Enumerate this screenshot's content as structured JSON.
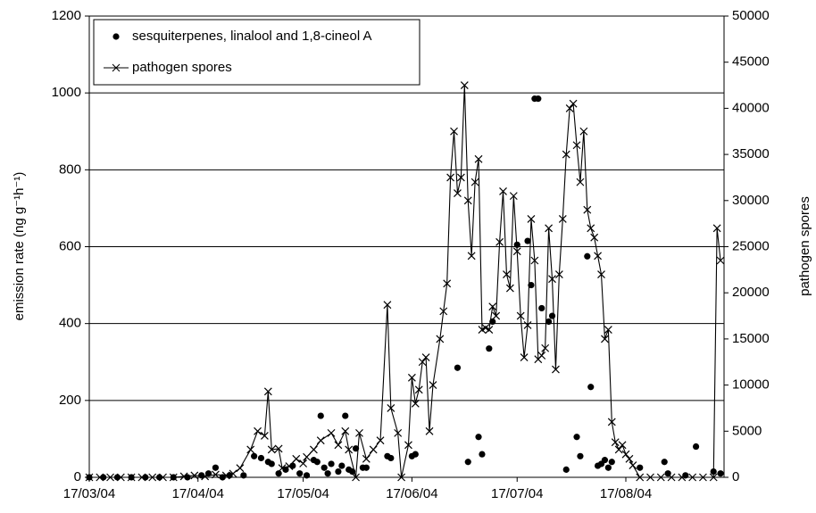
{
  "chart_data": {
    "type": "combo",
    "ylabel": "emission rate (ng g⁻¹h⁻¹)",
    "y2label": "pathogen spores",
    "xlim": [
      "2004-03-17",
      "2004-09-14"
    ],
    "xticks": [
      {
        "value": "2004-03-17",
        "label": "17/03/04"
      },
      {
        "value": "2004-04-17",
        "label": "17/04/04"
      },
      {
        "value": "2004-05-17",
        "label": "17/05/04"
      },
      {
        "value": "2004-06-17",
        "label": "17/06/04"
      },
      {
        "value": "2004-07-17",
        "label": "17/07/04"
      },
      {
        "value": "2004-08-17",
        "label": "17/08/04"
      }
    ],
    "ylim": [
      0,
      1200
    ],
    "yticks": [
      0,
      200,
      400,
      600,
      800,
      1000,
      1200
    ],
    "y2lim": [
      0,
      50000
    ],
    "y2ticks": [
      0,
      5000,
      10000,
      15000,
      20000,
      25000,
      30000,
      35000,
      40000,
      45000,
      50000
    ],
    "grid": true,
    "legend": "upper left",
    "series": [
      {
        "name": "sesquiterpenes, linalool and 1,8-cineol A",
        "type": "scatter",
        "color": "#000000",
        "x": [
          "2004-03-17",
          "2004-03-21",
          "2004-03-25",
          "2004-03-29",
          "2004-04-02",
          "2004-04-06",
          "2004-04-10",
          "2004-04-14",
          "2004-04-18",
          "2004-04-20",
          "2004-04-22",
          "2004-04-24",
          "2004-04-26",
          "2004-04-30",
          "2004-05-03",
          "2004-05-05",
          "2004-05-07",
          "2004-05-08",
          "2004-05-10",
          "2004-05-12",
          "2004-05-14",
          "2004-05-16",
          "2004-05-18",
          "2004-05-20",
          "2004-05-21",
          "2004-05-22",
          "2004-05-23",
          "2004-05-24",
          "2004-05-25",
          "2004-05-27",
          "2004-05-28",
          "2004-05-29",
          "2004-05-30",
          "2004-05-31",
          "2004-06-01",
          "2004-06-03",
          "2004-06-04",
          "2004-06-10",
          "2004-06-11",
          "2004-06-17",
          "2004-06-18",
          "2004-06-30",
          "2004-07-03",
          "2004-07-06",
          "2004-07-07",
          "2004-07-09",
          "2004-07-10",
          "2004-07-17",
          "2004-07-20",
          "2004-07-21",
          "2004-07-22",
          "2004-07-23",
          "2004-07-24",
          "2004-07-26",
          "2004-07-27",
          "2004-07-31",
          "2004-08-03",
          "2004-08-04",
          "2004-08-06",
          "2004-08-07",
          "2004-08-09",
          "2004-08-10",
          "2004-08-11",
          "2004-08-12",
          "2004-08-13",
          "2004-08-21",
          "2004-08-28",
          "2004-08-29",
          "2004-09-03",
          "2004-09-06",
          "2004-09-11",
          "2004-09-13"
        ],
        "values": [
          0,
          0,
          0,
          0,
          0,
          0,
          0,
          0,
          5,
          10,
          25,
          0,
          5,
          5,
          55,
          50,
          40,
          35,
          10,
          20,
          30,
          10,
          5,
          45,
          40,
          160,
          25,
          10,
          35,
          15,
          30,
          160,
          20,
          15,
          75,
          25,
          25,
          55,
          50,
          55,
          60,
          285,
          40,
          105,
          60,
          335,
          405,
          605,
          615,
          500,
          985,
          985,
          440,
          405,
          420,
          20,
          105,
          55,
          575,
          235,
          30,
          35,
          45,
          25,
          40,
          25,
          40,
          10,
          5,
          80,
          15,
          10
        ]
      },
      {
        "name": "pathogen spores",
        "type": "line",
        "axis": "y2",
        "color": "#000000",
        "x": [
          "2004-03-17",
          "2004-03-20",
          "2004-03-23",
          "2004-03-26",
          "2004-03-29",
          "2004-04-01",
          "2004-04-04",
          "2004-04-07",
          "2004-04-10",
          "2004-04-13",
          "2004-04-16",
          "2004-04-19",
          "2004-04-22",
          "2004-04-25",
          "2004-04-27",
          "2004-04-29",
          "2004-05-02",
          "2004-05-04",
          "2004-05-06",
          "2004-05-07",
          "2004-05-08",
          "2004-05-10",
          "2004-05-11",
          "2004-05-13",
          "2004-05-15",
          "2004-05-17",
          "2004-05-18",
          "2004-05-20",
          "2004-05-22",
          "2004-05-25",
          "2004-05-27",
          "2004-05-29",
          "2004-05-30",
          "2004-06-01",
          "2004-06-02",
          "2004-06-04",
          "2004-06-06",
          "2004-06-08",
          "2004-06-10",
          "2004-06-11",
          "2004-06-13",
          "2004-06-14",
          "2004-06-16",
          "2004-06-17",
          "2004-06-18",
          "2004-06-19",
          "2004-06-20",
          "2004-06-21",
          "2004-06-22",
          "2004-06-23",
          "2004-06-25",
          "2004-06-26",
          "2004-06-27",
          "2004-06-28",
          "2004-06-29",
          "2004-06-30",
          "2004-07-01",
          "2004-07-02",
          "2004-07-03",
          "2004-07-04",
          "2004-07-05",
          "2004-07-06",
          "2004-07-07",
          "2004-07-08",
          "2004-07-09",
          "2004-07-10",
          "2004-07-11",
          "2004-07-12",
          "2004-07-13",
          "2004-07-14",
          "2004-07-15",
          "2004-07-16",
          "2004-07-17",
          "2004-07-18",
          "2004-07-19",
          "2004-07-20",
          "2004-07-21",
          "2004-07-22",
          "2004-07-23",
          "2004-07-24",
          "2004-07-25",
          "2004-07-26",
          "2004-07-27",
          "2004-07-28",
          "2004-07-29",
          "2004-07-30",
          "2004-07-31",
          "2004-08-01",
          "2004-08-02",
          "2004-08-03",
          "2004-08-04",
          "2004-08-05",
          "2004-08-06",
          "2004-08-07",
          "2004-08-08",
          "2004-08-09",
          "2004-08-10",
          "2004-08-11",
          "2004-08-12",
          "2004-08-13",
          "2004-08-14",
          "2004-08-15",
          "2004-08-16",
          "2004-08-17",
          "2004-08-18",
          "2004-08-19",
          "2004-08-21",
          "2004-08-24",
          "2004-08-27",
          "2004-08-30",
          "2004-09-02",
          "2004-09-05",
          "2004-09-08",
          "2004-09-11",
          "2004-09-12",
          "2004-09-13"
        ],
        "values": [
          0,
          0,
          0,
          0,
          0,
          0,
          0,
          0,
          0,
          100,
          200,
          100,
          300,
          200,
          400,
          1000,
          3000,
          5000,
          4500,
          9300,
          3000,
          3100,
          1000,
          1200,
          2000,
          1500,
          2200,
          3000,
          4000,
          4800,
          3500,
          5000,
          3000,
          0,
          4800,
          2000,
          3000,
          4000,
          18700,
          7500,
          4800,
          0,
          3500,
          10800,
          8000,
          9500,
          12500,
          13000,
          5000,
          10000,
          15000,
          18000,
          21000,
          32500,
          37500,
          30800,
          32500,
          42500,
          30000,
          24000,
          32000,
          34500,
          16000,
          16200,
          16000,
          18500,
          17500,
          25500,
          31000,
          22000,
          20500,
          30500,
          24500,
          17500,
          13000,
          16500,
          28000,
          23500,
          12800,
          13200,
          14000,
          27000,
          21500,
          11700,
          22000,
          28000,
          35000,
          40000,
          40500,
          36000,
          32000,
          37500,
          29000,
          27000,
          26000,
          24000,
          22000,
          15000,
          16000,
          6000,
          3800,
          3000,
          3500,
          2500,
          2000,
          1300,
          0,
          0,
          0,
          0,
          0,
          0,
          0,
          0,
          27000,
          23500
        ]
      }
    ]
  }
}
